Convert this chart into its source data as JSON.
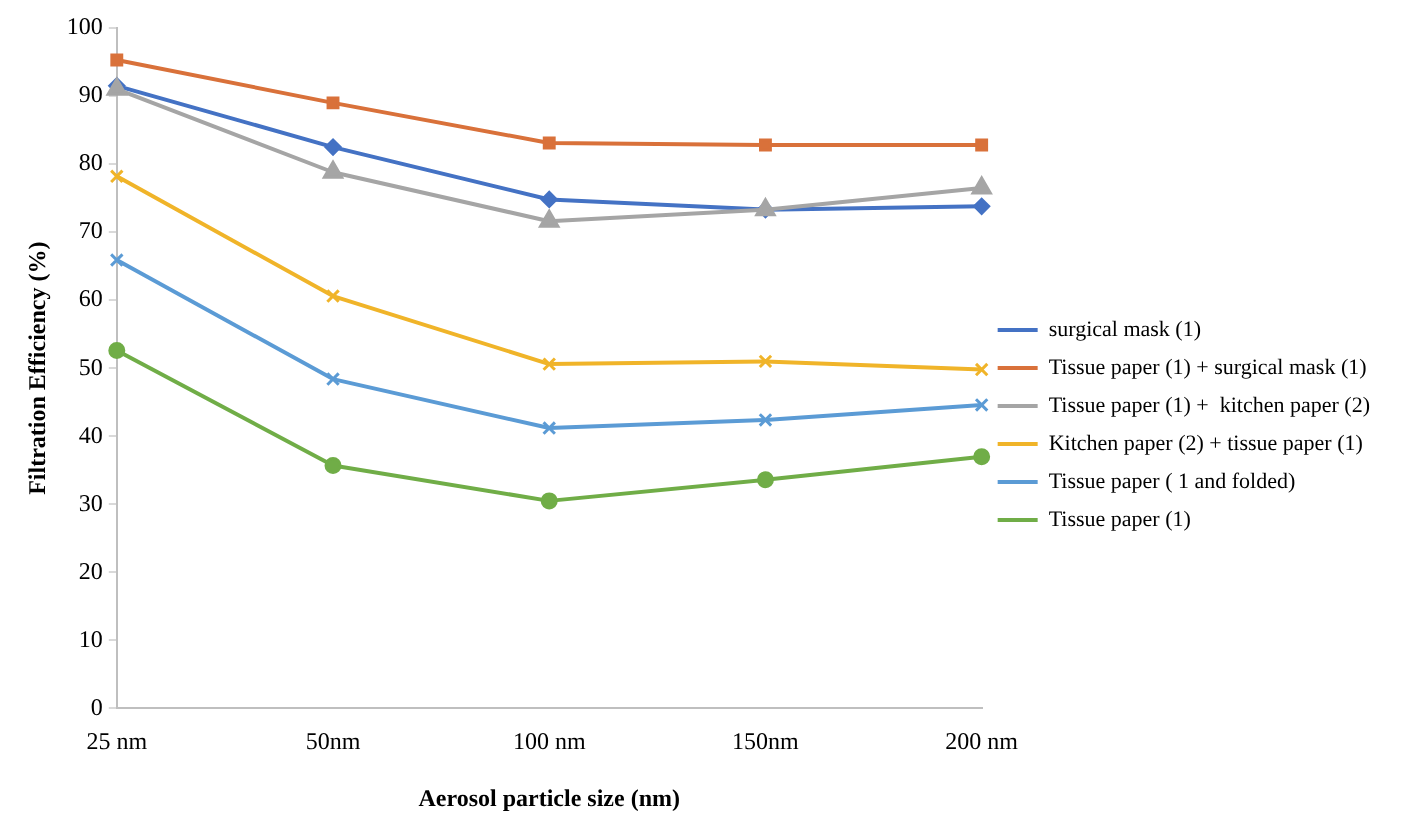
{
  "chart_data": {
    "type": "line",
    "xlabel": "Aerosol particle size (nm)",
    "ylabel": "Filtration Efficiency (%)",
    "categories": [
      "25 nm",
      "50nm",
      "100 nm",
      "150nm",
      "200 nm"
    ],
    "series": [
      {
        "name": "surgical mask (1)",
        "color": "#4472c4",
        "marker": "diamond",
        "values": [
          91.5,
          82.5,
          74.8,
          73.3,
          73.8
        ]
      },
      {
        "name": "Tissue paper (1) + surgical mask (1)",
        "color": "#d9713a",
        "marker": "square",
        "values": [
          95.3,
          89,
          83.1,
          82.8,
          82.8
        ]
      },
      {
        "name": "Tissue paper (1) +  kitchen paper (2)",
        "color": "#a5a5a5",
        "marker": "triangle",
        "values": [
          91,
          78.8,
          71.6,
          73.3,
          76.5
        ]
      },
      {
        "name": "Kitchen paper (2) + tissue paper (1)",
        "color": "#f0b429",
        "marker": "cross",
        "values": [
          78.2,
          60.6,
          50.6,
          51,
          49.8
        ]
      },
      {
        "name": "Tissue paper ( 1 and folded)",
        "color": "#5b9bd5",
        "marker": "cross",
        "values": [
          65.9,
          48.4,
          41.2,
          42.4,
          44.6
        ]
      },
      {
        "name": "Tissue paper (1)",
        "color": "#70ad47",
        "marker": "circle",
        "values": [
          52.6,
          35.7,
          30.5,
          33.6,
          37
        ]
      }
    ],
    "ylim": [
      0,
      100
    ],
    "yticks": [
      0,
      10,
      20,
      30,
      40,
      50,
      60,
      70,
      80,
      90,
      100
    ],
    "grid": false,
    "legend": "right",
    "line_style": "solid"
  }
}
